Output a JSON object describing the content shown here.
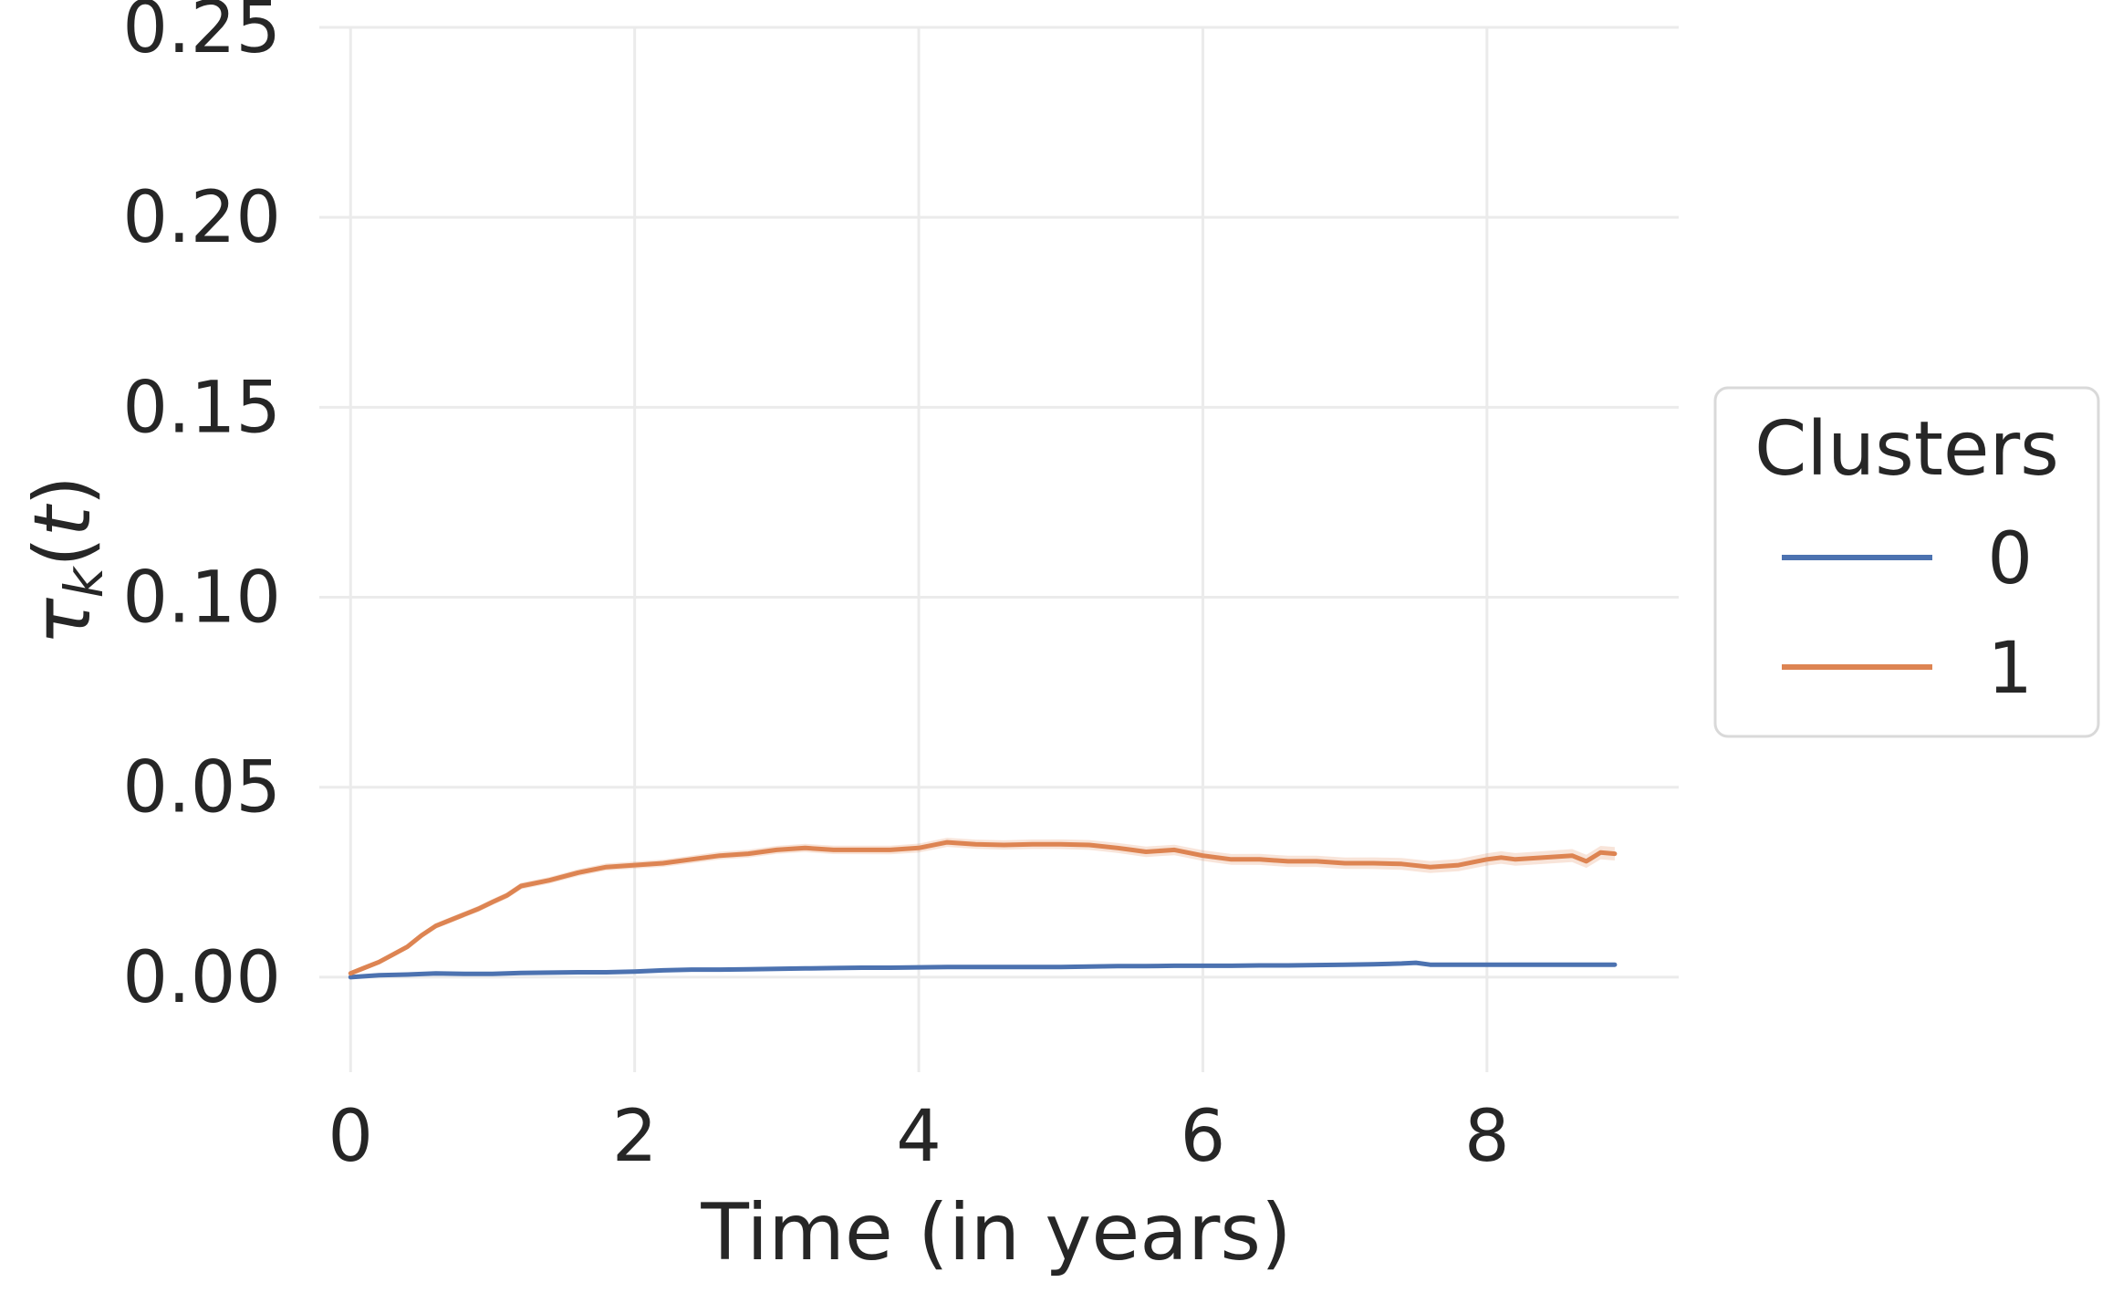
{
  "chart_data": {
    "type": "line",
    "title": "",
    "xlabel": "Time (in years)",
    "ylabel": "τ_k(t)",
    "xlim": [
      -0.22,
      9.35
    ],
    "ylim": [
      -0.025,
      0.25
    ],
    "xticks": [
      0,
      2,
      4,
      6,
      8
    ],
    "xtick_labels": [
      "0",
      "2",
      "4",
      "6",
      "8"
    ],
    "yticks": [
      0.0,
      0.05,
      0.1,
      0.15,
      0.2,
      0.25
    ],
    "ytick_labels": [
      "0.00",
      "0.05",
      "0.10",
      "0.15",
      "0.20",
      "0.25"
    ],
    "grid": true,
    "legend": {
      "title": "Clusters",
      "placement": "center-right-outside"
    },
    "series": [
      {
        "name": "0",
        "color": "#4c72b0",
        "x": [
          0,
          0.2,
          0.4,
          0.6,
          0.8,
          1.0,
          1.2,
          1.4,
          1.6,
          1.8,
          2.0,
          2.2,
          2.4,
          2.6,
          2.8,
          3.0,
          3.2,
          3.4,
          3.6,
          3.8,
          4.0,
          4.2,
          4.4,
          4.6,
          4.8,
          5.0,
          5.2,
          5.4,
          5.6,
          5.8,
          6.0,
          6.2,
          6.4,
          6.6,
          6.8,
          7.0,
          7.2,
          7.4,
          7.5,
          7.6,
          7.8,
          8.0,
          8.2,
          8.4,
          8.6,
          8.8,
          8.9
        ],
        "y": [
          0.0,
          0.0005,
          0.0007,
          0.001,
          0.0009,
          0.0009,
          0.0011,
          0.0012,
          0.0013,
          0.0013,
          0.0015,
          0.0018,
          0.002,
          0.002,
          0.0021,
          0.0022,
          0.0023,
          0.0024,
          0.0025,
          0.0025,
          0.0026,
          0.0027,
          0.0027,
          0.0027,
          0.0027,
          0.0027,
          0.0028,
          0.0029,
          0.0029,
          0.003,
          0.003,
          0.003,
          0.0031,
          0.0031,
          0.0032,
          0.0033,
          0.0034,
          0.0036,
          0.0038,
          0.0033,
          0.0033,
          0.0033,
          0.0033,
          0.0033,
          0.0033,
          0.0033,
          0.0033
        ],
        "band_halfwidth": 0.0004
      },
      {
        "name": "1",
        "color": "#dd8452",
        "x": [
          0,
          0.1,
          0.2,
          0.3,
          0.4,
          0.5,
          0.6,
          0.7,
          0.8,
          0.9,
          1.0,
          1.1,
          1.2,
          1.4,
          1.6,
          1.8,
          2.0,
          2.2,
          2.4,
          2.6,
          2.8,
          3.0,
          3.2,
          3.4,
          3.6,
          3.8,
          4.0,
          4.2,
          4.4,
          4.6,
          4.8,
          5.0,
          5.2,
          5.4,
          5.5,
          5.6,
          5.8,
          6.0,
          6.2,
          6.4,
          6.6,
          6.8,
          7.0,
          7.2,
          7.4,
          7.6,
          7.8,
          8.0,
          8.1,
          8.2,
          8.4,
          8.6,
          8.7,
          8.8,
          8.9
        ],
        "y": [
          0.001,
          0.0025,
          0.004,
          0.006,
          0.008,
          0.011,
          0.0135,
          0.015,
          0.0165,
          0.018,
          0.0198,
          0.0215,
          0.024,
          0.0255,
          0.0275,
          0.029,
          0.0295,
          0.03,
          0.031,
          0.032,
          0.0325,
          0.0335,
          0.034,
          0.0335,
          0.0335,
          0.0335,
          0.034,
          0.0355,
          0.035,
          0.0348,
          0.035,
          0.035,
          0.0348,
          0.034,
          0.0335,
          0.033,
          0.0335,
          0.032,
          0.031,
          0.031,
          0.0305,
          0.0305,
          0.03,
          0.03,
          0.0298,
          0.029,
          0.0295,
          0.031,
          0.0315,
          0.031,
          0.0315,
          0.032,
          0.0305,
          0.0328,
          0.0325
        ],
        "band_halfwidth": 0.0012
      }
    ]
  }
}
